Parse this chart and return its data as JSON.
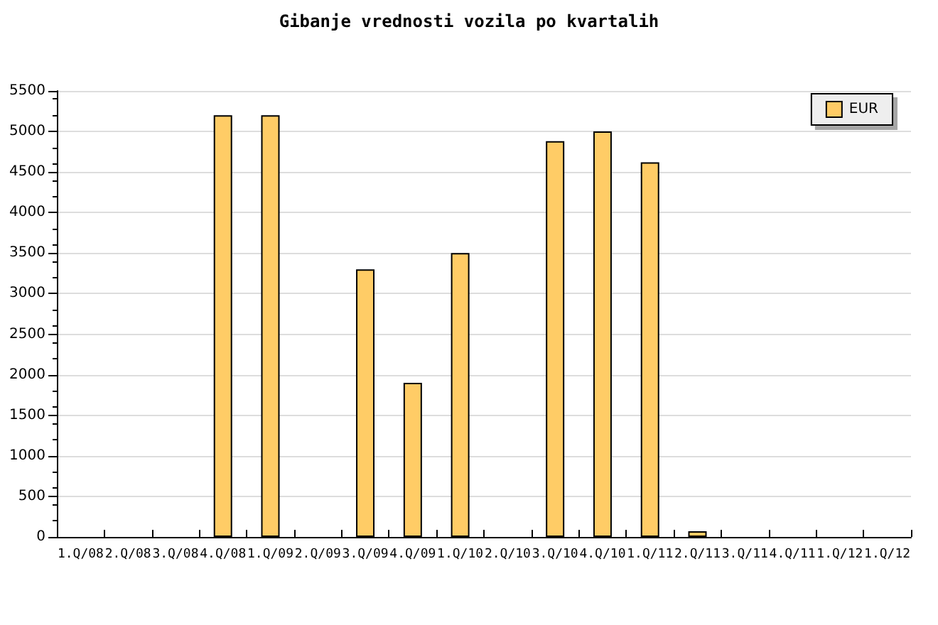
{
  "chart_data": {
    "type": "bar",
    "title": "Gibanje vrednosti vozila po kvartalih",
    "categories": [
      "1.Q/08",
      "2.Q/08",
      "3.Q/08",
      "4.Q/08",
      "1.Q/09",
      "2.Q/09",
      "3.Q/09",
      "4.Q/09",
      "1.Q/10",
      "2.Q/10",
      "3.Q/10",
      "4.Q/10",
      "1.Q/11",
      "2.Q/11",
      "3.Q/11",
      "4.Q/11",
      "1.Q/12",
      "1.Q/12"
    ],
    "series": [
      {
        "name": "EUR",
        "color": "#ffcc66",
        "values": [
          null,
          null,
          null,
          5200,
          5200,
          null,
          3300,
          1900,
          3500,
          null,
          4880,
          5000,
          4620,
          70,
          null,
          null,
          null,
          null
        ]
      }
    ],
    "ylim": [
      0,
      5500
    ],
    "yticks": [
      0,
      500,
      1000,
      1500,
      2000,
      2500,
      3000,
      3500,
      4000,
      4500,
      5000,
      5500
    ],
    "grid": "y",
    "legend": "top right"
  }
}
